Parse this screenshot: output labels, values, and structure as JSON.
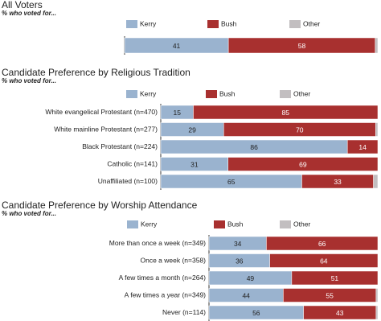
{
  "chart_data": [
    {
      "type": "stacked-bar",
      "title": "All Voters",
      "subtitle": "% who voted for...",
      "categories": [
        null
      ],
      "xlim": [
        0,
        100
      ],
      "series": [
        {
          "name": "Kerry",
          "color": "#9ab3cf",
          "values": [
            41
          ]
        },
        {
          "name": "Bush",
          "color": "#a8302f",
          "values": [
            58
          ]
        },
        {
          "name": "Other",
          "color": "#c2bec0",
          "values": [
            1
          ]
        }
      ]
    },
    {
      "type": "stacked-bar",
      "title": "Candidate Preference by Religious Tradition",
      "subtitle": "% who voted for...",
      "categories": [
        "White evangelical Protestant (n=470)",
        "White mainline Protestant (n=277)",
        "Black Protestant (n=224)",
        "Catholic (n=141)",
        "Unaffiliated (n=100)"
      ],
      "xlim": [
        0,
        100
      ],
      "series": [
        {
          "name": "Kerry",
          "color": "#9ab3cf",
          "values": [
            15,
            29,
            86,
            31,
            65
          ]
        },
        {
          "name": "Bush",
          "color": "#a8302f",
          "values": [
            85,
            70,
            14,
            69,
            33
          ]
        },
        {
          "name": "Other",
          "color": "#c2bec0",
          "values": [
            0,
            1,
            0,
            0,
            2
          ]
        }
      ]
    },
    {
      "type": "stacked-bar",
      "title": "Candidate Preference by Worship Attendance",
      "subtitle": "% who voted for...",
      "categories": [
        "More than once a week (n=349)",
        "Once a week (n=358)",
        "A few times a month (n=264)",
        "A few times a year (n=349)",
        "Never (n=114)"
      ],
      "xlim": [
        0,
        100
      ],
      "series": [
        {
          "name": "Kerry",
          "color": "#9ab3cf",
          "values": [
            34,
            36,
            49,
            44,
            56
          ]
        },
        {
          "name": "Bush",
          "color": "#a8302f",
          "values": [
            66,
            64,
            51,
            55,
            43
          ]
        },
        {
          "name": "Other",
          "color": "#c2bec0",
          "values": [
            0,
            0,
            0,
            1,
            1
          ]
        }
      ]
    }
  ]
}
